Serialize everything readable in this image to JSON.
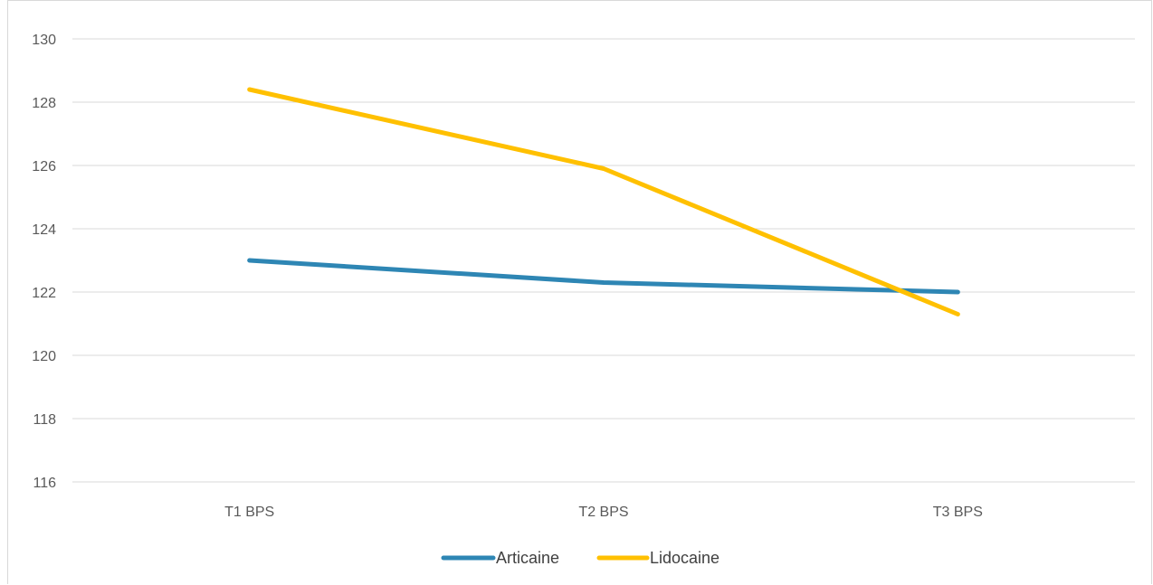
{
  "chart_data": {
    "type": "line",
    "categories": [
      "T1 BPS",
      "T2 BPS",
      "T3 BPS"
    ],
    "series": [
      {
        "name": "Articaine",
        "values": [
          123.0,
          122.3,
          122.0
        ],
        "color": "#2e86b4"
      },
      {
        "name": "Lidocaine",
        "values": [
          128.4,
          125.9,
          121.3
        ],
        "color": "#ffc000"
      }
    ],
    "ylim": [
      116,
      130
    ],
    "yticks": [
      116,
      118,
      120,
      122,
      124,
      126,
      128,
      130
    ],
    "grid": true,
    "legend_position": "bottom"
  }
}
